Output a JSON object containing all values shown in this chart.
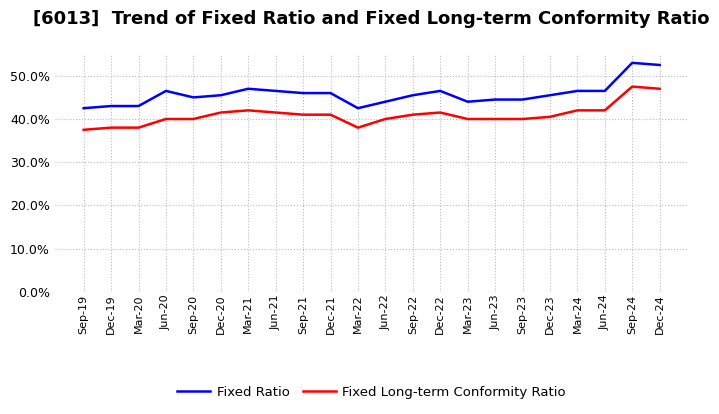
{
  "title": "[6013]  Trend of Fixed Ratio and Fixed Long-term Conformity Ratio",
  "labels": [
    "Sep-19",
    "Dec-19",
    "Mar-20",
    "Jun-20",
    "Sep-20",
    "Dec-20",
    "Mar-21",
    "Jun-21",
    "Sep-21",
    "Dec-21",
    "Mar-22",
    "Jun-22",
    "Sep-22",
    "Dec-22",
    "Mar-23",
    "Jun-23",
    "Sep-23",
    "Dec-23",
    "Mar-24",
    "Jun-24",
    "Sep-24",
    "Dec-24"
  ],
  "fixed_ratio": [
    42.5,
    43.0,
    43.0,
    46.5,
    45.0,
    45.5,
    47.0,
    46.5,
    46.0,
    46.0,
    42.5,
    44.0,
    45.5,
    46.5,
    44.0,
    44.5,
    44.5,
    45.5,
    46.5,
    46.5,
    53.0,
    52.5
  ],
  "fixed_lt_ratio": [
    37.5,
    38.0,
    38.0,
    40.0,
    40.0,
    41.5,
    42.0,
    41.5,
    41.0,
    41.0,
    38.0,
    40.0,
    41.0,
    41.5,
    40.0,
    40.0,
    40.0,
    40.5,
    42.0,
    42.0,
    47.5,
    47.0
  ],
  "fixed_ratio_color": "#0000ff",
  "fixed_lt_ratio_color": "#ff0000",
  "ylim": [
    0,
    55
  ],
  "yticks": [
    0,
    10,
    20,
    30,
    40,
    50
  ],
  "background_color": "#ffffff",
  "plot_bg_color": "#ffffff",
  "grid_color": "#aaaaaa",
  "title_fontsize": 13,
  "legend_fixed_ratio": "Fixed Ratio",
  "legend_fixed_lt_ratio": "Fixed Long-term Conformity Ratio"
}
